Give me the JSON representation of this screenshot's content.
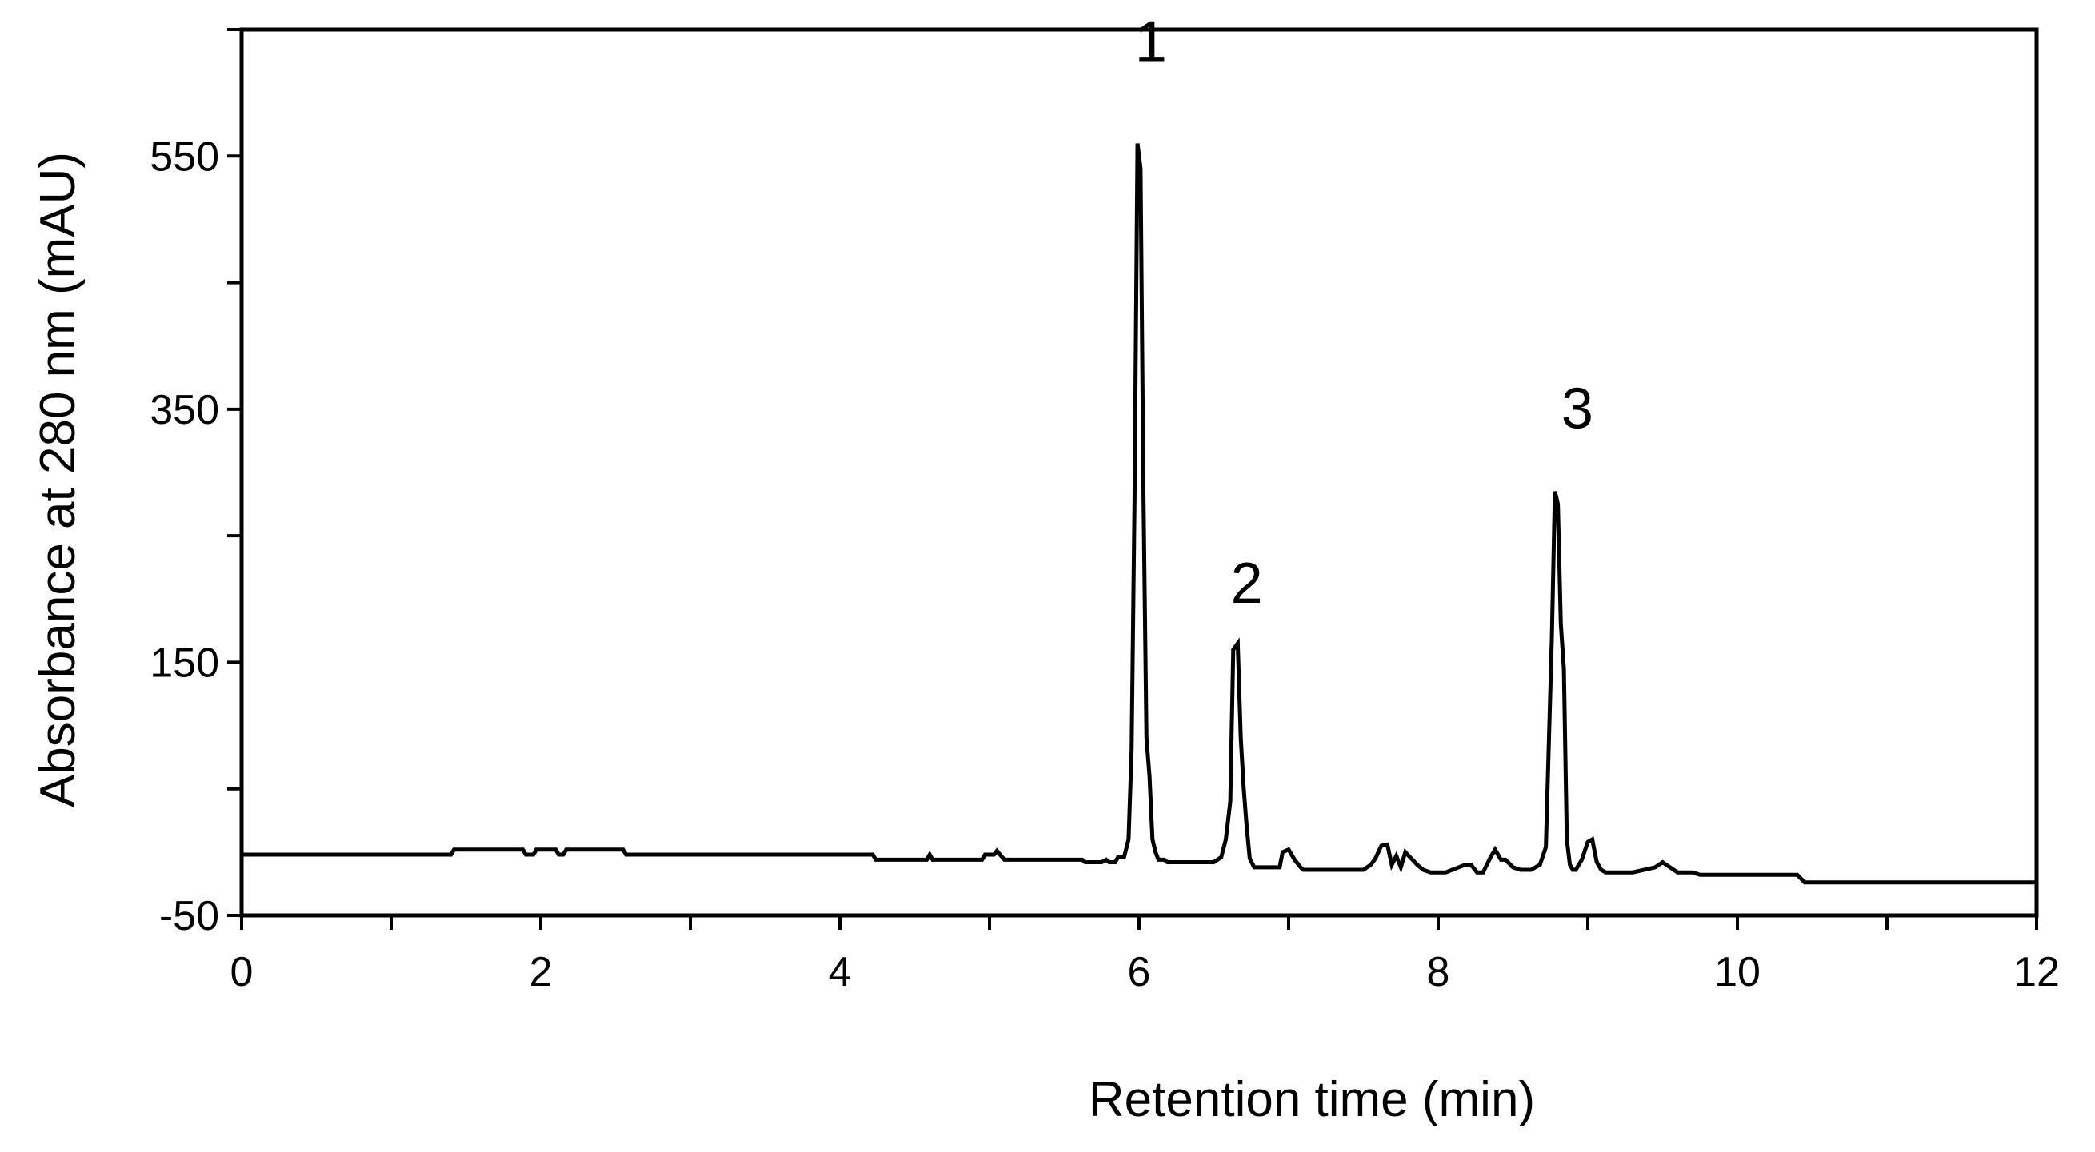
{
  "chart_data": {
    "type": "line",
    "xlabel": "Retention time (min)",
    "ylabel": "Absorbance at 280 nm (mAU)",
    "xlim": [
      0,
      12
    ],
    "ylim": [
      -50,
      650
    ],
    "x_ticks": [
      0,
      2,
      4,
      6,
      8,
      10,
      12
    ],
    "y_ticks": [
      -50,
      150,
      350,
      550
    ],
    "x_tick_labels": [
      "0",
      "2",
      "4",
      "6",
      "8",
      "10",
      "12"
    ],
    "y_tick_labels": [
      "-50",
      "150",
      "350",
      "550"
    ],
    "grid": false,
    "legend": "none",
    "line_color": "#000000",
    "series": [
      {
        "x": [
          0,
          1.4,
          1.42,
          1.88,
          1.9,
          1.95,
          1.97,
          2.1,
          2.12,
          2.15,
          2.17,
          2.55,
          2.57,
          4.22,
          4.24,
          4.58,
          4.6,
          4.62,
          4.95,
          4.97,
          5.03,
          5.05,
          5.07,
          5.1,
          5.62,
          5.64,
          5.75,
          5.78,
          5.8,
          5.84,
          5.86,
          5.9,
          5.93,
          5.95,
          5.97,
          5.99,
          6.01,
          6.03,
          6.05,
          6.07,
          6.09,
          6.11,
          6.13,
          6.17,
          6.19,
          6.22,
          6.5,
          6.55,
          6.58,
          6.61,
          6.63,
          6.66,
          6.68,
          6.7,
          6.72,
          6.74,
          6.77,
          6.8,
          6.94,
          6.96,
          7.0,
          7.04,
          7.08,
          7.1,
          7.5,
          7.55,
          7.58,
          7.62,
          7.66,
          7.69,
          7.72,
          7.75,
          7.78,
          7.82,
          7.86,
          7.9,
          7.95,
          8.0,
          8.05,
          8.18,
          8.22,
          8.26,
          8.3,
          8.35,
          8.38,
          8.42,
          8.45,
          8.5,
          8.55,
          8.62,
          8.68,
          8.72,
          8.76,
          8.78,
          8.8,
          8.82,
          8.84,
          8.86,
          8.88,
          8.9,
          8.92,
          8.96,
          9.0,
          9.03,
          9.06,
          9.09,
          9.12,
          9.15,
          9.2,
          9.3,
          9.45,
          9.5,
          9.55,
          9.6,
          9.7,
          9.75,
          10.0,
          10.4,
          10.45,
          12
        ],
        "y": [
          -2,
          -2,
          2,
          2,
          -2,
          -2,
          2,
          2,
          -2,
          -2,
          2,
          2,
          -2,
          -2,
          -6,
          -6,
          -2,
          -6,
          -6,
          -2,
          -2,
          1,
          -2,
          -6,
          -6,
          -8,
          -8,
          -6,
          -8,
          -8,
          -4,
          -4,
          10,
          80,
          280,
          560,
          540,
          280,
          90,
          60,
          10,
          0,
          -6,
          -6,
          -8,
          -8,
          -8,
          -4,
          10,
          40,
          160,
          165,
          90,
          50,
          20,
          -5,
          -12,
          -12,
          -12,
          0,
          2,
          -6,
          -12,
          -14,
          -14,
          -10,
          -5,
          5,
          6,
          -10,
          -3,
          -12,
          0,
          -5,
          -10,
          -14,
          -16,
          -16,
          -16,
          -10,
          -10,
          -16,
          -16,
          -4,
          2,
          -6,
          -6,
          -12,
          -14,
          -14,
          -10,
          4,
          170,
          285,
          275,
          180,
          145,
          10,
          -10,
          -14,
          -14,
          -6,
          8,
          10,
          -8,
          -14,
          -16,
          -16,
          -16,
          -16,
          -12,
          -8,
          -12,
          -16,
          -16,
          -18,
          -18,
          -18,
          -24,
          -24
        ]
      }
    ],
    "annotations": [
      {
        "text": "1",
        "x": 6.08,
        "y": 625
      },
      {
        "text": "2",
        "x": 6.72,
        "y": 197
      },
      {
        "text": "3",
        "x": 8.93,
        "y": 335
      }
    ]
  }
}
